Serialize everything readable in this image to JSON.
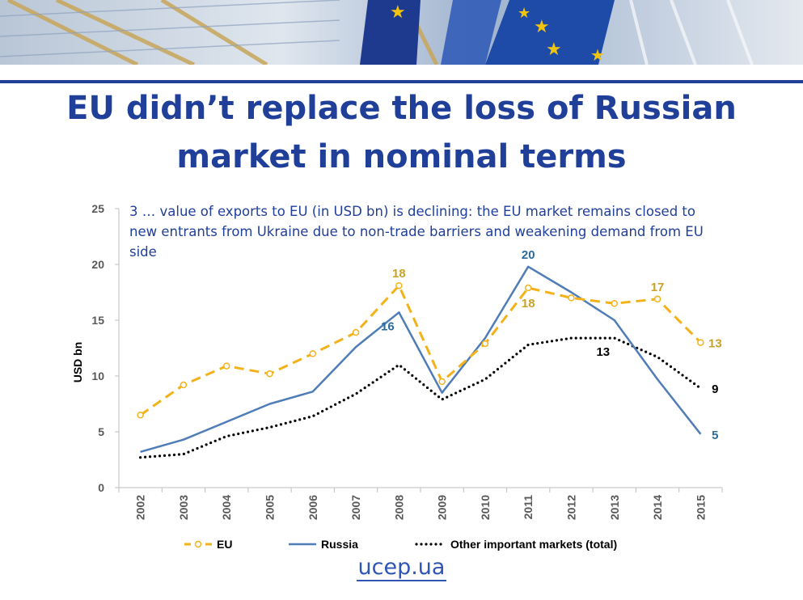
{
  "slide": {
    "title_line1": "EU didn’t replace the loss of Russian",
    "title_line2": "market in nominal terms",
    "note": "3 … value of exports to EU (in USD bn) is declining: the EU market remains closed to new entrants from Ukraine due to non-trade barriers and weakening demand from EU side",
    "brand": "ucep.ua"
  },
  "chart_data": {
    "type": "line",
    "title": "",
    "xlabel": "",
    "ylabel": "USD bn",
    "ylim": [
      0,
      25
    ],
    "yticks": [
      0,
      5,
      10,
      15,
      20,
      25
    ],
    "categories": [
      "2002",
      "2003",
      "2004",
      "2005",
      "2006",
      "2007",
      "2008",
      "2009",
      "2010",
      "2011",
      "2012",
      "2013",
      "2014",
      "2015"
    ],
    "series": [
      {
        "key": "eu",
        "name": "EU",
        "color": "#f2b21a",
        "label_color": "#c9a227",
        "style": "dashed-markers",
        "values": [
          6.5,
          9.2,
          10.9,
          10.2,
          12.0,
          13.9,
          18.1,
          9.5,
          12.9,
          17.9,
          17.0,
          16.5,
          16.9,
          13.0
        ],
        "labels": [
          {
            "index": 6,
            "text": "18",
            "pos": "above"
          },
          {
            "index": 9,
            "text": "18",
            "pos": "below"
          },
          {
            "index": 12,
            "text": "17",
            "pos": "above"
          },
          {
            "index": 13,
            "text": "13",
            "pos": "right"
          }
        ]
      },
      {
        "key": "russia",
        "name": "Russia",
        "color": "#4f7db7",
        "label_color": "#2c6b9e",
        "style": "solid",
        "values": [
          3.2,
          4.3,
          5.9,
          7.5,
          8.6,
          12.6,
          15.7,
          8.5,
          13.4,
          19.8,
          17.5,
          15.0,
          9.7,
          4.8
        ],
        "labels": [
          {
            "index": 6,
            "text": "16",
            "pos": "belowleft"
          },
          {
            "index": 9,
            "text": "20",
            "pos": "above"
          },
          {
            "index": 13,
            "text": "5",
            "pos": "right"
          }
        ]
      },
      {
        "key": "other",
        "name": "Other important markets (total)",
        "color": "#000000",
        "label_color": "#000000",
        "style": "dotted",
        "values": [
          2.7,
          3.0,
          4.6,
          5.4,
          6.4,
          8.4,
          11.0,
          7.9,
          9.7,
          12.8,
          13.4,
          13.4,
          11.7,
          8.9
        ],
        "labels": [
          {
            "index": 11,
            "text": "13",
            "pos": "belowleft"
          },
          {
            "index": 13,
            "text": "9",
            "pos": "right"
          }
        ]
      }
    ],
    "legend": "bottom"
  }
}
